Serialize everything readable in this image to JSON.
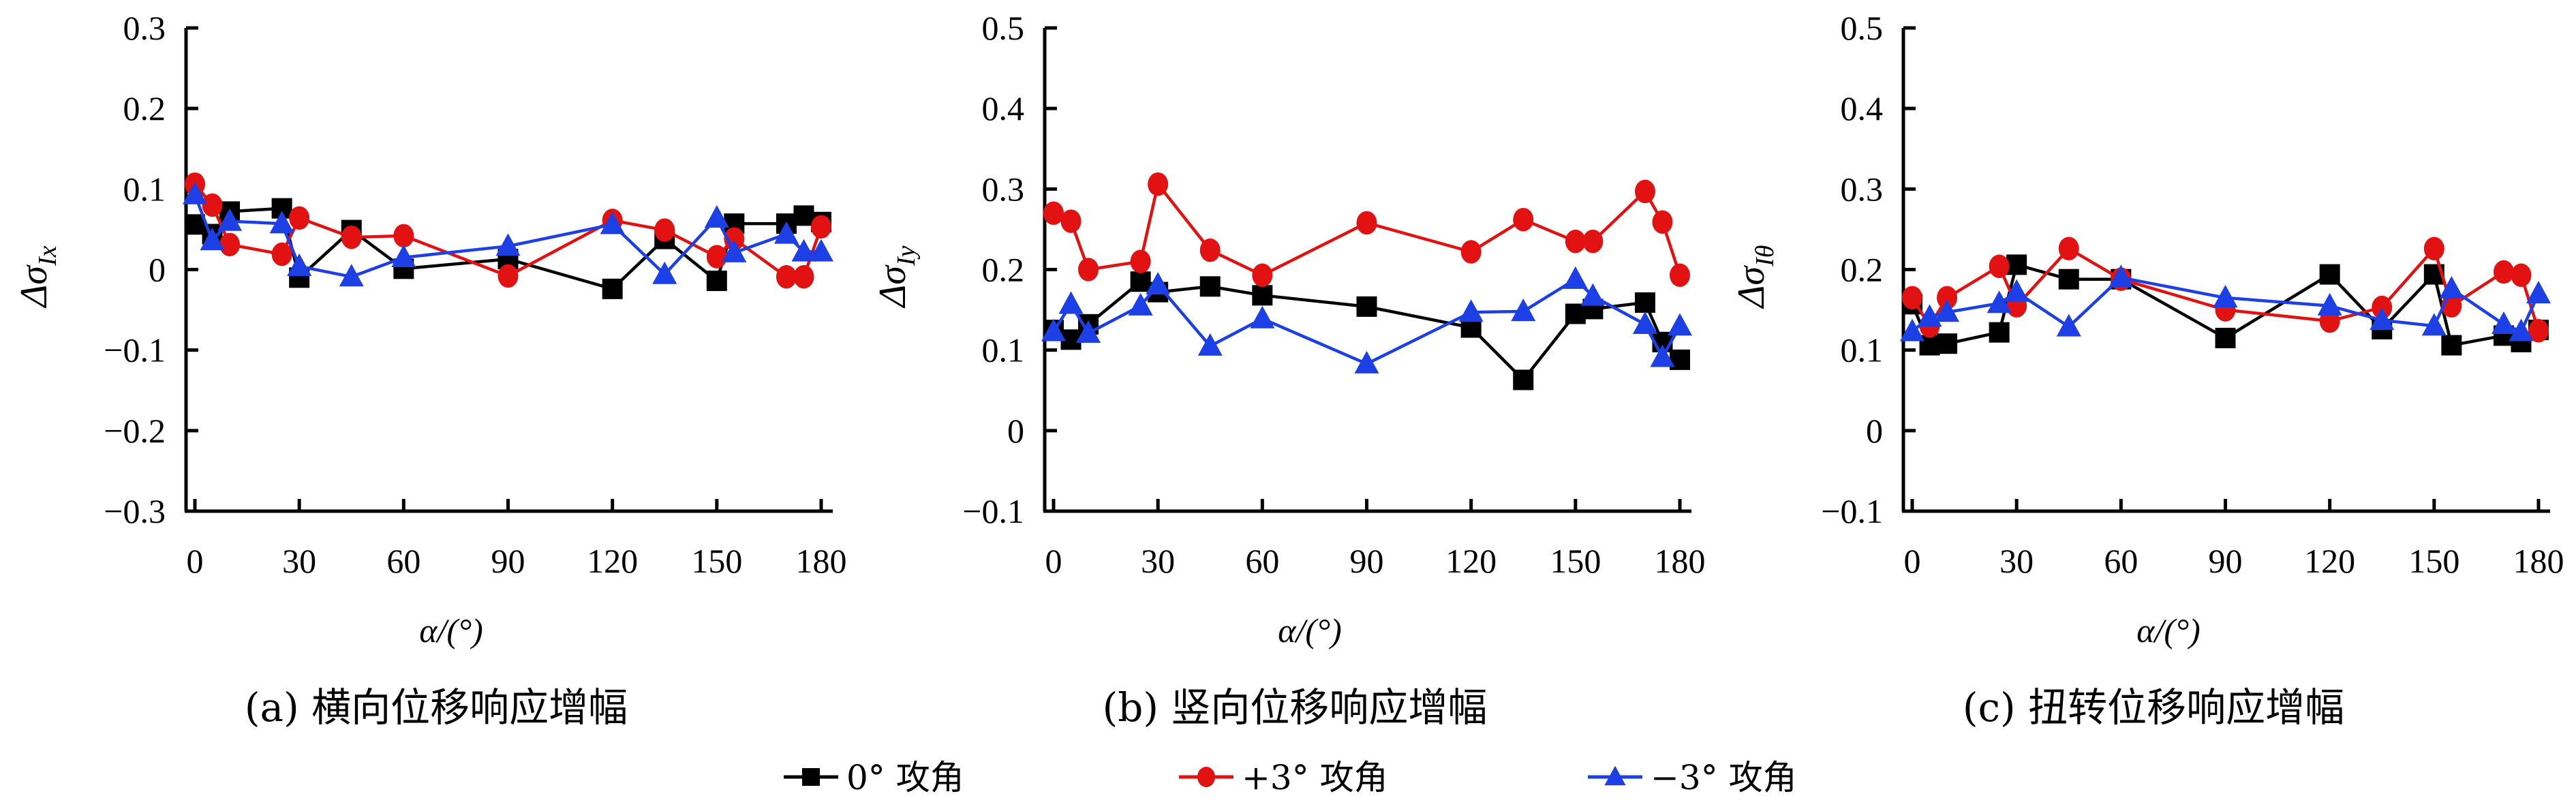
{
  "colors": {
    "series_0": "#000000",
    "series_plus3": "#e31212",
    "series_minus3": "#1c3fe6",
    "axis": "#000000"
  },
  "legend": [
    {
      "label": "0° 攻角",
      "marker": "square",
      "color": "#000000"
    },
    {
      "label": "+3° 攻角",
      "marker": "circle",
      "color": "#e31212"
    },
    {
      "label": "−3° 攻角",
      "marker": "triangle",
      "color": "#1c3fe6"
    }
  ],
  "chart_data": [
    {
      "type": "line",
      "caption": "(a) 横向位移响应增幅",
      "xlabel": "α/(°)",
      "ylabel_main": "Δσ",
      "ylabel_sub": "Ix",
      "xlim": [
        0,
        180
      ],
      "ylim": [
        -0.3,
        0.3
      ],
      "xticks": [
        0,
        30,
        60,
        90,
        120,
        150,
        180
      ],
      "xtick_labels": [
        "0",
        "30",
        "60",
        "90",
        "120",
        "150",
        "180"
      ],
      "yticks": [
        -0.3,
        -0.2,
        -0.1,
        0,
        0.1,
        0.2,
        0.3
      ],
      "ytick_labels": [
        "−0.3",
        "−0.2",
        "−0.1",
        "0",
        "0.1",
        "0.2",
        "0.3"
      ],
      "grid": false,
      "x": [
        0,
        5,
        10,
        25,
        30,
        45,
        60,
        90,
        120,
        135,
        150,
        155,
        170,
        175,
        180
      ],
      "series": [
        {
          "name": "0° 攻角",
          "values": [
            0.056,
            0.044,
            0.072,
            0.076,
            -0.01,
            0.049,
            0.001,
            0.013,
            -0.024,
            0.038,
            -0.014,
            0.057,
            0.057,
            0.067,
            0.059
          ]
        },
        {
          "name": "+3° 攻角",
          "values": [
            0.106,
            0.08,
            0.031,
            0.019,
            0.064,
            0.04,
            0.042,
            -0.008,
            0.061,
            0.049,
            0.016,
            0.038,
            -0.009,
            -0.009,
            0.053
          ]
        },
        {
          "name": "−3° 攻角",
          "values": [
            0.093,
            0.036,
            0.06,
            0.057,
            0.004,
            -0.009,
            0.015,
            0.029,
            0.056,
            -0.006,
            0.064,
            0.021,
            0.044,
            0.022,
            0.022
          ]
        }
      ]
    },
    {
      "type": "line",
      "caption": "(b) 竖向位移响应增幅",
      "xlabel": "α/(°)",
      "ylabel_main": "Δσ",
      "ylabel_sub": "Iy",
      "xlim": [
        0,
        180
      ],
      "ylim": [
        -0.1,
        0.5
      ],
      "xticks": [
        0,
        30,
        60,
        90,
        120,
        150,
        180
      ],
      "xtick_labels": [
        "0",
        "30",
        "60",
        "90",
        "120",
        "150",
        "180"
      ],
      "yticks": [
        -0.1,
        0,
        0.1,
        0.2,
        0.3,
        0.4,
        0.5
      ],
      "ytick_labels": [
        "−0.1",
        "0",
        "0.1",
        "0.2",
        "0.3",
        "0.4",
        "0.5"
      ],
      "grid": false,
      "x": [
        0,
        5,
        10,
        25,
        30,
        45,
        60,
        90,
        120,
        135,
        150,
        155,
        170,
        175,
        180
      ],
      "series": [
        {
          "name": "0° 攻角",
          "values": [
            0.125,
            0.113,
            0.132,
            0.185,
            0.172,
            0.179,
            0.168,
            0.154,
            0.128,
            0.063,
            0.145,
            0.151,
            0.159,
            0.11,
            0.088
          ]
        },
        {
          "name": "+3° 攻角",
          "values": [
            0.27,
            0.26,
            0.2,
            0.21,
            0.306,
            0.224,
            0.193,
            0.258,
            0.222,
            0.262,
            0.235,
            0.235,
            0.297,
            0.259,
            0.193
          ]
        },
        {
          "name": "−3° 攻角",
          "values": [
            0.123,
            0.157,
            0.121,
            0.155,
            0.181,
            0.105,
            0.139,
            0.083,
            0.147,
            0.148,
            0.188,
            0.167,
            0.132,
            0.091,
            0.13
          ]
        }
      ]
    },
    {
      "type": "line",
      "caption": "(c) 扭转位移响应增幅",
      "xlabel": "α/(°)",
      "ylabel_main": "Δσ",
      "ylabel_sub": "Iθ",
      "xlim": [
        0,
        180
      ],
      "ylim": [
        -0.1,
        0.5
      ],
      "xticks": [
        0,
        30,
        60,
        90,
        120,
        150,
        180
      ],
      "xtick_labels": [
        "0",
        "30",
        "60",
        "90",
        "120",
        "150",
        "180"
      ],
      "yticks": [
        -0.1,
        0,
        0.1,
        0.2,
        0.3,
        0.4,
        0.5
      ],
      "ytick_labels": [
        "−0.1",
        "0",
        "0.1",
        "0.2",
        "0.3",
        "0.4",
        "0.5"
      ],
      "grid": false,
      "x": [
        0,
        5,
        10,
        25,
        30,
        45,
        60,
        90,
        120,
        135,
        150,
        155,
        170,
        175,
        180
      ],
      "series": [
        {
          "name": "0° 攻角",
          "values": [
            0.157,
            0.106,
            0.108,
            0.122,
            0.206,
            0.188,
            0.188,
            0.115,
            0.194,
            0.126,
            0.194,
            0.106,
            0.118,
            0.11,
            0.125
          ]
        },
        {
          "name": "+3° 攻角",
          "values": [
            0.165,
            0.13,
            0.165,
            0.204,
            0.155,
            0.226,
            0.188,
            0.15,
            0.136,
            0.153,
            0.226,
            0.155,
            0.197,
            0.193,
            0.124
          ]
        },
        {
          "name": "−3° 攻角",
          "values": [
            0.123,
            0.141,
            0.147,
            0.158,
            0.172,
            0.129,
            0.19,
            0.165,
            0.155,
            0.137,
            0.13,
            0.176,
            0.132,
            0.123,
            0.17
          ]
        }
      ]
    }
  ]
}
